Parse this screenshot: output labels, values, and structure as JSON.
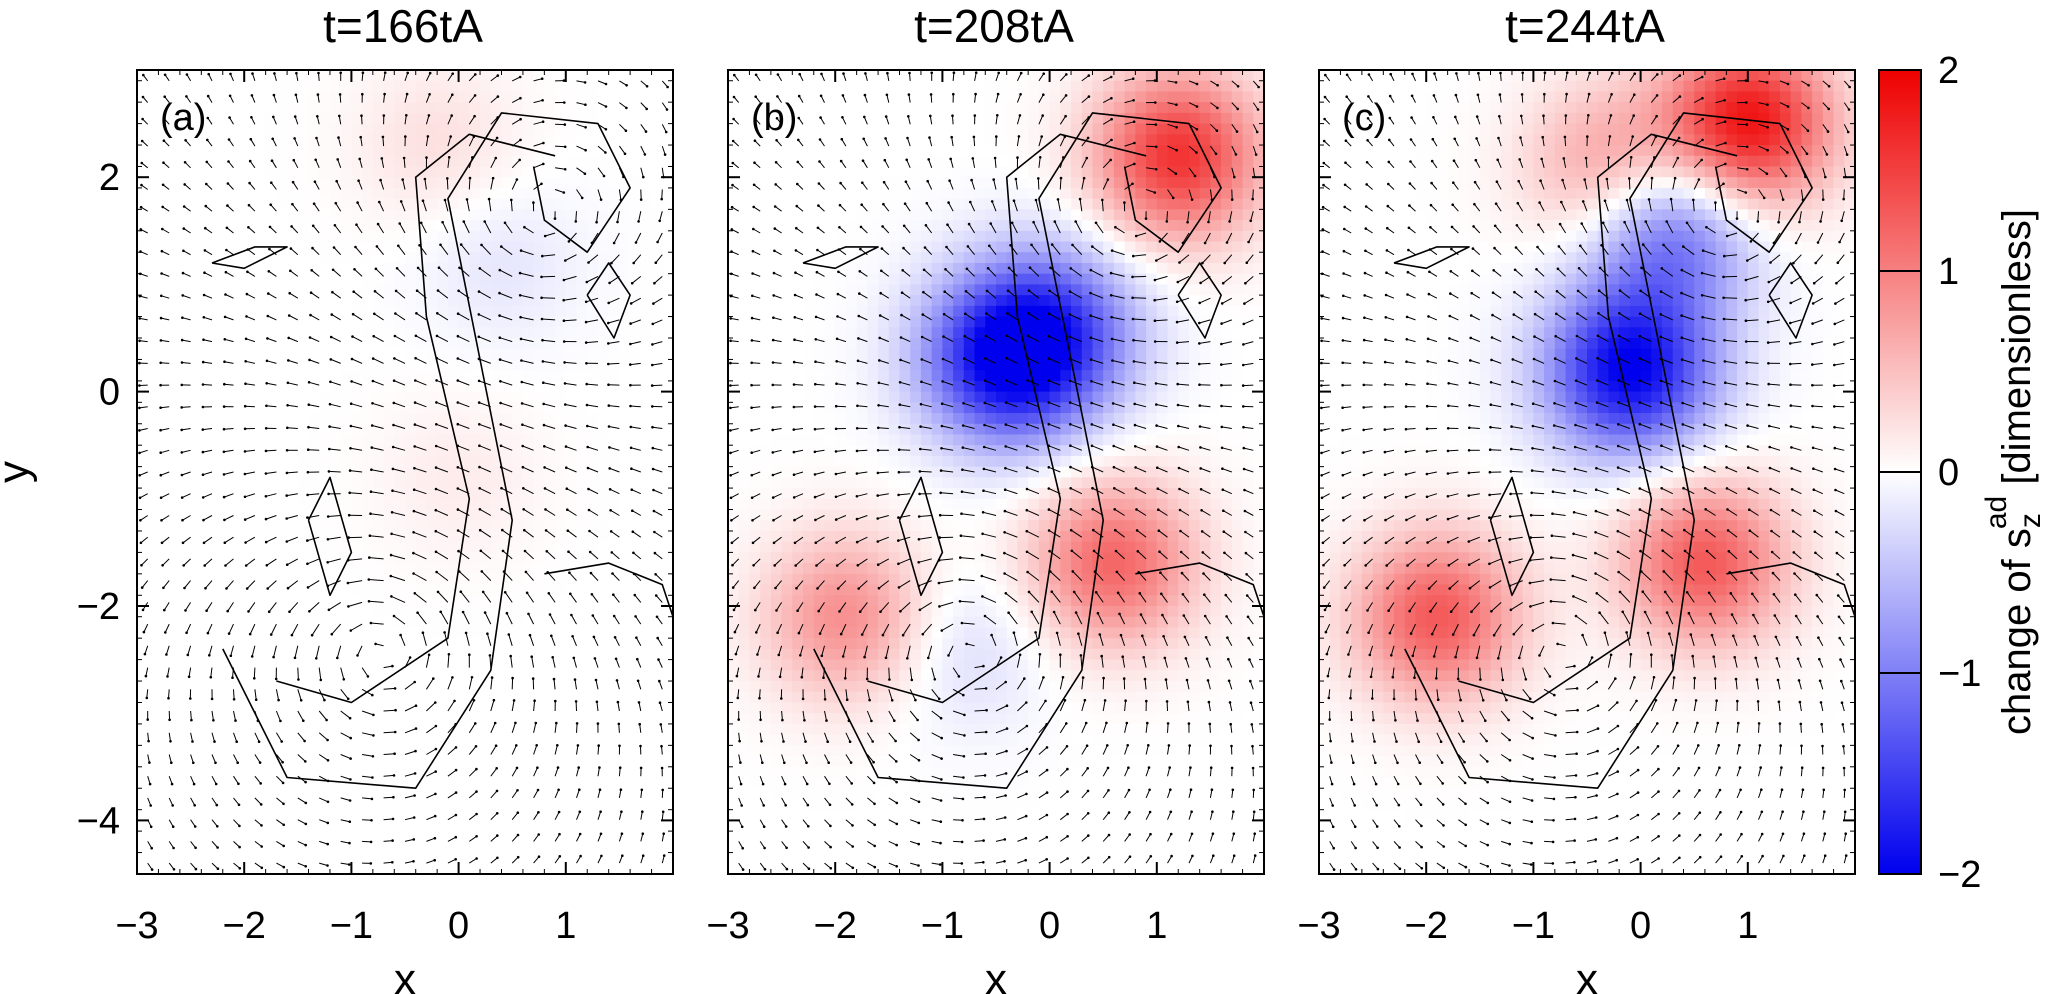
{
  "chart_data": [
    {
      "type": "heatmap",
      "panel_label": "(a)",
      "title": "t=166tA",
      "xlabel": "x",
      "ylabel": "y",
      "xlim": [
        -3,
        2
      ],
      "ylim": [
        -4.5,
        3
      ],
      "xticks": [
        -3,
        -2,
        -1,
        0,
        1
      ],
      "yticks": [
        -4,
        -2,
        0,
        2
      ],
      "tick_labels_x": [
        "−3",
        "−2",
        "−1",
        "0",
        "1"
      ],
      "tick_labels_y": [
        "−4",
        "−2",
        "0",
        "2"
      ],
      "overlays": [
        "velocity-arrows",
        "contour-lines"
      ],
      "features": [
        {
          "kind": "max",
          "x": -0.2,
          "y": 2.3,
          "value": 0.25
        },
        {
          "kind": "min",
          "x": 0.4,
          "y": 1.2,
          "value": -0.2
        },
        {
          "kind": "max",
          "x": 0.0,
          "y": -0.8,
          "value": 0.15
        }
      ]
    },
    {
      "type": "heatmap",
      "panel_label": "(b)",
      "title": "t=208tA",
      "xlabel": "x",
      "xlim": [
        -3,
        2
      ],
      "ylim": [
        -4.5,
        3
      ],
      "xticks": [
        -3,
        -2,
        -1,
        0,
        1
      ],
      "tick_labels_x": [
        "−3",
        "−2",
        "−1",
        "0",
        "1"
      ],
      "overlays": [
        "velocity-arrows",
        "contour-lines"
      ],
      "features": [
        {
          "kind": "max",
          "x": 1.2,
          "y": 2.2,
          "value": 1.6
        },
        {
          "kind": "min",
          "x": -0.4,
          "y": 0.3,
          "value": -1.9
        },
        {
          "kind": "min",
          "x": 0.1,
          "y": 0.6,
          "value": -1.0
        },
        {
          "kind": "max",
          "x": 0.6,
          "y": -1.6,
          "value": 1.2
        },
        {
          "kind": "max",
          "x": -1.9,
          "y": -2.1,
          "value": 0.9
        },
        {
          "kind": "min",
          "x": -0.8,
          "y": -2.4,
          "value": -0.3
        }
      ]
    },
    {
      "type": "heatmap",
      "panel_label": "(c)",
      "title": "t=244tA",
      "xlabel": "x",
      "xlim": [
        -3,
        2
      ],
      "ylim": [
        -4.5,
        3
      ],
      "xticks": [
        -3,
        -2,
        -1,
        0,
        1
      ],
      "tick_labels_x": [
        "−3",
        "−2",
        "−1",
        "0",
        "1"
      ],
      "overlays": [
        "velocity-arrows",
        "contour-lines"
      ],
      "features": [
        {
          "kind": "max",
          "x": 1.0,
          "y": 2.5,
          "value": 1.9
        },
        {
          "kind": "min",
          "x": -0.1,
          "y": 0.2,
          "value": -2.0
        },
        {
          "kind": "min",
          "x": 0.3,
          "y": 1.5,
          "value": -1.2
        },
        {
          "kind": "max",
          "x": 0.6,
          "y": -1.6,
          "value": 1.3
        },
        {
          "kind": "max",
          "x": -1.9,
          "y": -2.1,
          "value": 1.3
        },
        {
          "kind": "max",
          "x": -0.3,
          "y": 2.1,
          "value": 0.8
        }
      ]
    }
  ],
  "colorbar": {
    "label_prefix": "change of s",
    "label_sub": "z",
    "label_sup": "ad",
    "label_unit": "[dimensionless]",
    "range": [
      -2,
      2
    ],
    "ticks": [
      "2",
      "1",
      "0",
      "−1",
      "−2"
    ],
    "colors": {
      "low": "#0000ee",
      "mid": "#ffffff",
      "high": "#ee0000"
    }
  }
}
